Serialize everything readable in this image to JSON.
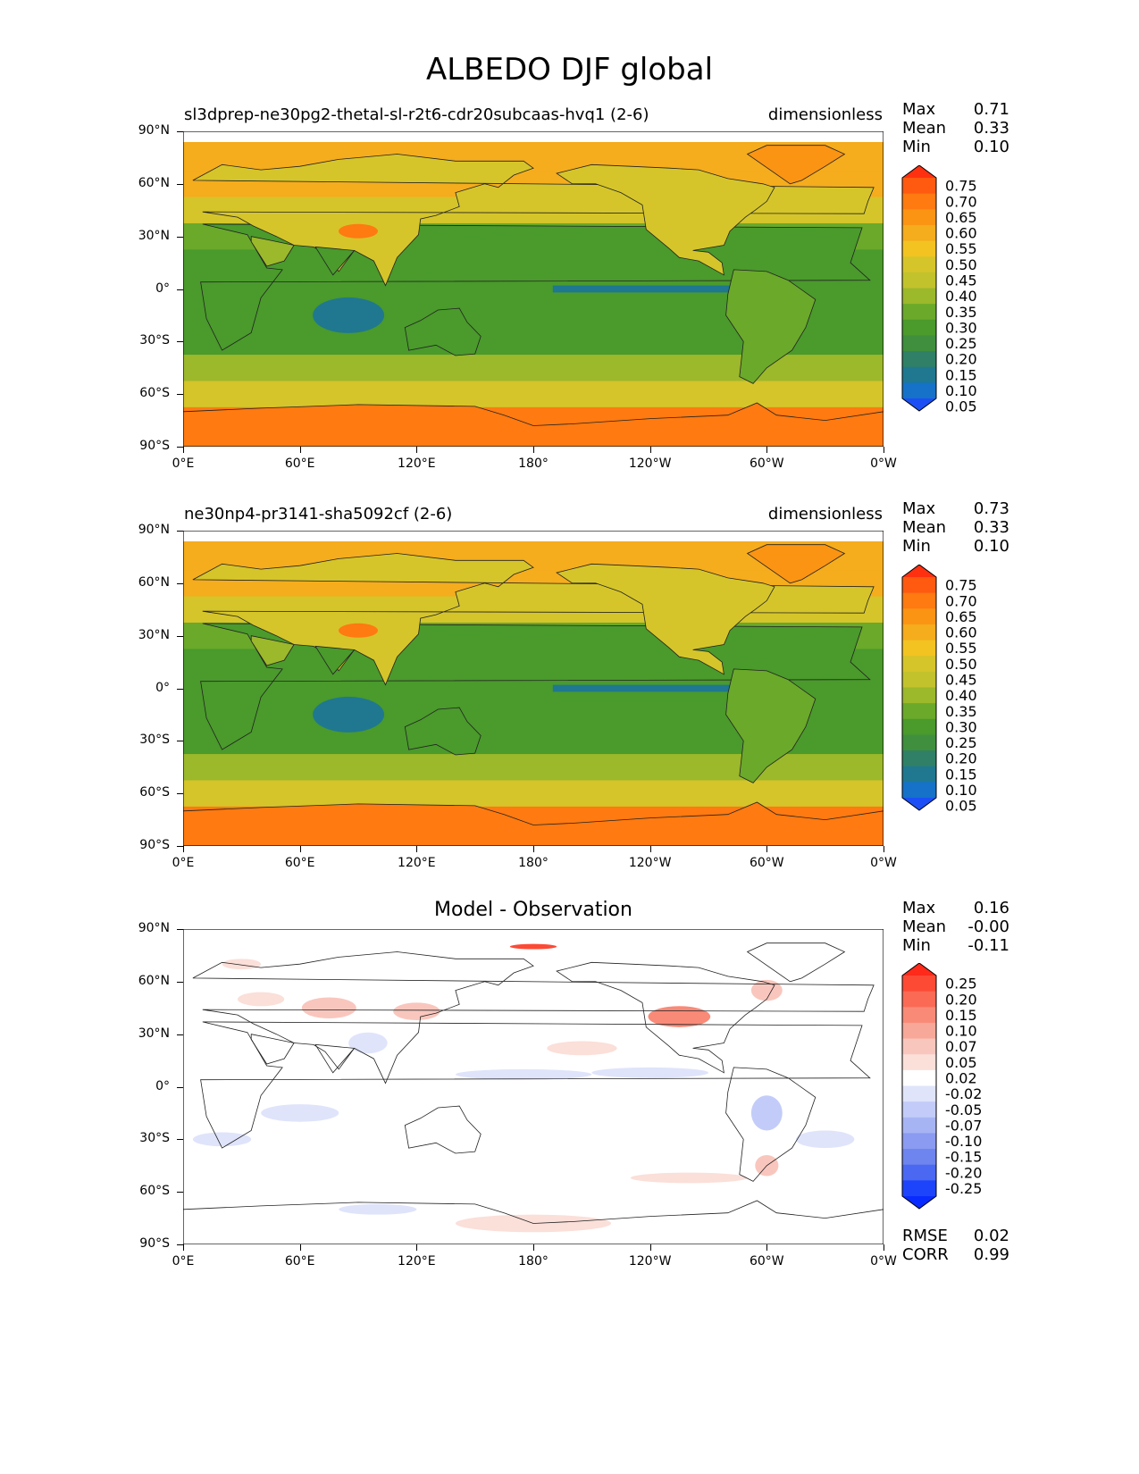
{
  "figure_title": "ALBEDO DJF global",
  "panels": [
    {
      "title_left": "sl3dprep-ne30pg2-thetal-sl-r2t6-cdr20subcaas-hvq1 (2-6)",
      "title_right": "dimensionless",
      "stats": [
        {
          "label": "Max",
          "value": "0.71"
        },
        {
          "label": "Mean",
          "value": "0.33"
        },
        {
          "label": "Min",
          "value": "0.10"
        }
      ]
    },
    {
      "title_left": "ne30np4-pr3141-sha5092cf (2-6)",
      "title_right": "dimensionless",
      "stats": [
        {
          "label": "Max",
          "value": "0.73"
        },
        {
          "label": "Mean",
          "value": "0.33"
        },
        {
          "label": "Min",
          "value": "0.10"
        }
      ]
    },
    {
      "title_center": "Model - Observation",
      "stats": [
        {
          "label": "Max",
          "value": "0.16"
        },
        {
          "label": "Mean",
          "value": "-0.00"
        },
        {
          "label": "Min",
          "value": "-0.11"
        }
      ],
      "metrics": [
        {
          "label": "RMSE",
          "value": "0.02"
        },
        {
          "label": "CORR",
          "value": "0.99"
        }
      ]
    }
  ],
  "axes": {
    "y_ticks": [
      "90°N",
      "60°N",
      "30°N",
      "0°",
      "30°S",
      "60°S",
      "90°S"
    ],
    "x_ticks": [
      "0°E",
      "60°E",
      "120°E",
      "180°",
      "120°W",
      "60°W",
      "0°W"
    ]
  },
  "colorbars": {
    "main": {
      "levels": [
        "0.75",
        "0.70",
        "0.65",
        "0.60",
        "0.55",
        "0.50",
        "0.45",
        "0.40",
        "0.35",
        "0.30",
        "0.25",
        "0.20",
        "0.15",
        "0.10",
        "0.05"
      ],
      "colors": [
        "#ff3010",
        "#ff5a10",
        "#ff7a10",
        "#fb9413",
        "#f5ac1d",
        "#f3c321",
        "#d5c52a",
        "#c2c22c",
        "#9cb82b",
        "#6aa92a",
        "#4a9a2c",
        "#3f8f3e",
        "#2f8066",
        "#1f7890",
        "#1572c8",
        "#1b4ff5"
      ]
    },
    "diff": {
      "levels": [
        "0.25",
        "0.20",
        "0.15",
        "0.10",
        "0.07",
        "0.05",
        "0.02",
        "-0.02",
        "-0.05",
        "-0.07",
        "-0.10",
        "-0.15",
        "-0.20",
        "-0.25"
      ],
      "colors": [
        "#ff2a1a",
        "#fd4a35",
        "#fb6a55",
        "#f98a78",
        "#f7a898",
        "#f9c6bd",
        "#fbdfd9",
        "#ffffff",
        "#dfe4fb",
        "#c3ccf8",
        "#a7b4f4",
        "#8b9bf1",
        "#6e84ee",
        "#4a68f2",
        "#1e44fb",
        "#0a2bff"
      ]
    }
  },
  "chart_data": [
    {
      "type": "heatmap",
      "title": "sl3dprep-ne30pg2-thetal-sl-r2t6-cdr20subcaas-hvq1 (2-6)",
      "units": "dimensionless",
      "x_ticks": [
        "0°E",
        "60°E",
        "120°E",
        "180°",
        "120°W",
        "60°W",
        "0°W"
      ],
      "y_ticks": [
        "90°N",
        "60°N",
        "30°N",
        "0°",
        "30°S",
        "60°S",
        "90°S"
      ],
      "xlim": [
        0,
        360
      ],
      "ylim": [
        -90,
        90
      ],
      "lat": [
        75,
        60,
        45,
        30,
        15,
        0,
        -15,
        -30,
        -45,
        -60,
        -75
      ],
      "zonal_mean_albedo": [
        0.55,
        0.55,
        0.45,
        0.33,
        0.25,
        0.28,
        0.25,
        0.28,
        0.38,
        0.45,
        0.65
      ],
      "stats": {
        "max": 0.71,
        "mean": 0.33,
        "min": 0.1
      }
    },
    {
      "type": "heatmap",
      "title": "ne30np4-pr3141-sha5092cf (2-6)",
      "units": "dimensionless",
      "x_ticks": [
        "0°E",
        "60°E",
        "120°E",
        "180°",
        "120°W",
        "60°W",
        "0°W"
      ],
      "y_ticks": [
        "90°N",
        "60°N",
        "30°N",
        "0°",
        "30°S",
        "60°S",
        "90°S"
      ],
      "xlim": [
        0,
        360
      ],
      "ylim": [
        -90,
        90
      ],
      "lat": [
        75,
        60,
        45,
        30,
        15,
        0,
        -15,
        -30,
        -45,
        -60,
        -75
      ],
      "zonal_mean_albedo": [
        0.55,
        0.56,
        0.46,
        0.33,
        0.25,
        0.28,
        0.25,
        0.28,
        0.39,
        0.45,
        0.66
      ],
      "stats": {
        "max": 0.73,
        "mean": 0.33,
        "min": 0.1
      }
    },
    {
      "type": "heatmap",
      "title": "Model - Observation",
      "x_ticks": [
        "0°E",
        "60°E",
        "120°E",
        "180°",
        "120°W",
        "60°W",
        "0°W"
      ],
      "y_ticks": [
        "90°N",
        "60°N",
        "30°N",
        "0°",
        "30°S",
        "60°S",
        "90°S"
      ],
      "xlim": [
        0,
        360
      ],
      "ylim": [
        -90,
        90
      ],
      "lat": [
        75,
        60,
        45,
        30,
        15,
        0,
        -15,
        -30,
        -45,
        -60,
        -75
      ],
      "zonal_mean_difference": [
        -0.01,
        0.02,
        0.02,
        0.01,
        -0.01,
        -0.01,
        0.0,
        0.0,
        0.0,
        0.0,
        0.02
      ],
      "stats": {
        "max": 0.16,
        "mean": -0.0,
        "min": -0.11
      },
      "rmse": 0.02,
      "corr": 0.99
    }
  ]
}
